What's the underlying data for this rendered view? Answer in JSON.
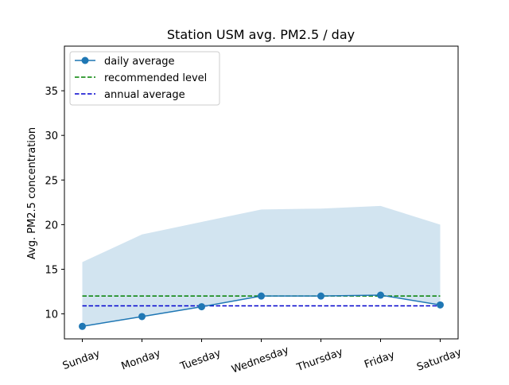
{
  "chart_data": {
    "type": "line",
    "title": "Station USM avg. PM2.5 / day",
    "xlabel": "",
    "ylabel": "Avg. PM2.5 concentration",
    "categories": [
      "Sunday",
      "Monday",
      "Tuesday",
      "Wednesday",
      "Thursday",
      "Friday",
      "Saturday"
    ],
    "ylim": [
      7.2,
      40.0
    ],
    "yticks": [
      10,
      15,
      20,
      25,
      30,
      35
    ],
    "grid": false,
    "legend_position": "top-left",
    "series": [
      {
        "name": "daily average",
        "kind": "line-markers",
        "color": "#1f77b4",
        "values": [
          8.6,
          9.7,
          10.8,
          12.0,
          12.0,
          12.1,
          11.0
        ]
      },
      {
        "name": "recommended level",
        "kind": "dashed-hline",
        "color": "#008000",
        "value": 12.0
      },
      {
        "name": "annual average",
        "kind": "dashed-hline",
        "color": "#0000cd",
        "value": 10.9
      }
    ],
    "band": {
      "color": "#1f77b4",
      "opacity": 0.2,
      "upper": [
        15.8,
        18.9,
        20.3,
        21.7,
        21.8,
        22.1,
        20.0
      ],
      "lower": [
        8.6,
        9.7,
        10.8,
        12.0,
        12.0,
        12.1,
        11.0
      ]
    }
  }
}
